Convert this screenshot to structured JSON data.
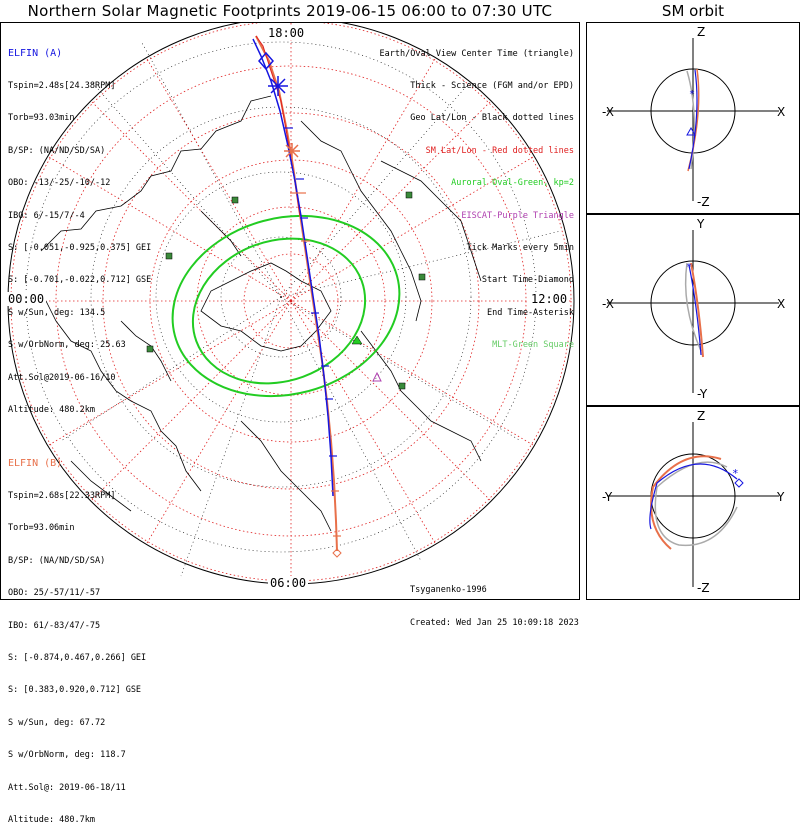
{
  "title": "Northern Solar Magnetic Footprints 2019-06-15 06:00 to 07:30 UTC",
  "orbit_title": "SM orbit",
  "elfin_a": {
    "header": "ELFIN (A)",
    "lines": [
      "Tspin=2.48s[24.38RPM]",
      "Torb=93.03min",
      "B/SP: (NA/ND/SD/SA)",
      "OBO: -13/-25/-10/-12",
      "IBO: 6/-15/7/-4",
      "S: [-0.051,-0.925,0.375] GEI",
      "S: [-0.701,-0.022,0.712] GSE",
      "S w/Sun, deg: 134.5",
      "S w/OrbNorm, deg: 25.63",
      "Att.Sol@2019-06-16/10",
      "Altitude: 480.2km"
    ],
    "color": "#1515e0"
  },
  "elfin_b": {
    "header": "ELFIN (B)",
    "lines": [
      "Tspin=2.68s[22.33RPM]",
      "Torb=93.06min",
      "B/SP: (NA/ND/SD/SA)",
      "OBO: 25/-57/11/-57",
      "IBO: 61/-83/47/-75",
      "S: [-0.874,0.467,0.266] GEI",
      "S: [0.383,0.920,0.712] GSE",
      "S w/Sun, deg: 67.72",
      "S w/OrbNorm, deg: 118.7",
      "Att.Sol@: 2019-06-18/11",
      "Altitude: 480.7km"
    ],
    "color": "#e8704a"
  },
  "legend": {
    "l1": "Earth/Oval View Center Time (triangle)",
    "l2": "Thick - Science (FGM and/or EPD)",
    "l3": "Geo Lat/Lon - Black dotted lines",
    "l4": "SM Lat/Lon - Red dotted lines",
    "l5": "Auroral Oval-Green, kp=2",
    "l6": "EISCAT-Purple Triangle",
    "l7": "Tick Marks every 5min",
    "l8": "Start Time-Diamond",
    "l9": "End Time-Asterisk",
    "l10": "MLT-Green Square"
  },
  "time_labels": {
    "top": "18:00",
    "left": "00:00",
    "right": "12:00",
    "bottom": "06:00"
  },
  "footer": {
    "model": "Tsyganenko-1996",
    "created": "Created: Wed Jan 25 10:09:18 2023"
  },
  "panels": [
    {
      "left": "-X",
      "right": "X",
      "top": "Z",
      "bottom": "-Z"
    },
    {
      "left": "-X",
      "right": "X",
      "top": "Y",
      "bottom": "-Y"
    },
    {
      "left": "-Y",
      "right": "Y",
      "top": "Z",
      "bottom": "-Z"
    }
  ],
  "chart_data": {
    "type": "map",
    "projection": "north polar, SM coordinates",
    "time_range": [
      "2019-06-15 06:00",
      "2019-06-15 07:30"
    ],
    "mlt_labels": [
      "18:00",
      "00:00",
      "12:00",
      "06:00"
    ],
    "model": "Tsyganenko-1996",
    "auroral_oval_kp": 2,
    "colors": {
      "elfin_a": "#1515e0",
      "elfin_b": "#e8704a",
      "sm_grid": "#e02020",
      "auroral_oval": "#22cc22",
      "eiscat": "#b040b0",
      "mlt_square": "#3a8a3a"
    }
  }
}
